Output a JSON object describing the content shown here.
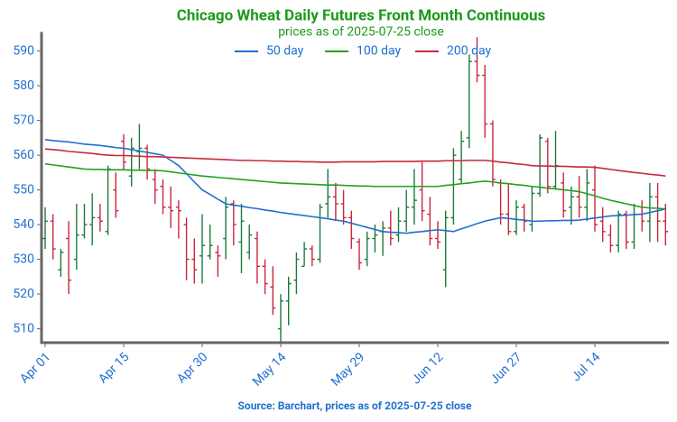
{
  "chart_data": {
    "type": "ohlc",
    "title": "Chicago Wheat Daily Futures Front Month Continuous",
    "subtitle": "prices as of 2025-07-25 close",
    "source": "Source: Barchart, prices as of 2025-07-25 close",
    "categories": [
      "Apr 01",
      null,
      null,
      null,
      null,
      null,
      null,
      null,
      null,
      null,
      "Apr 15",
      null,
      null,
      null,
      null,
      null,
      null,
      null,
      null,
      null,
      "Apr 30",
      null,
      null,
      null,
      null,
      null,
      null,
      null,
      null,
      null,
      "May 14",
      null,
      null,
      null,
      null,
      null,
      null,
      null,
      null,
      null,
      "May 29",
      null,
      null,
      null,
      null,
      null,
      null,
      null,
      null,
      null,
      "Jun 12",
      null,
      null,
      null,
      null,
      null,
      null,
      null,
      null,
      null,
      "Jun 27",
      null,
      null,
      null,
      null,
      null,
      null,
      null,
      null,
      null,
      "Jul 14",
      null,
      null,
      null,
      null,
      null,
      null,
      null,
      null,
      null
    ],
    "open": [
      536,
      541,
      527,
      536,
      530,
      537,
      540,
      542,
      538,
      550,
      564,
      554,
      561,
      562,
      553,
      551,
      545,
      545,
      540,
      530,
      531,
      531,
      532,
      536,
      546,
      535,
      532,
      536,
      528,
      522,
      510,
      518,
      524,
      528,
      533,
      530,
      546,
      548,
      546,
      542,
      535,
      530,
      536,
      538,
      539,
      537,
      541,
      545,
      550,
      543,
      536,
      527,
      542,
      553,
      565,
      587,
      583,
      569,
      552,
      543,
      538,
      545,
      540,
      549,
      564,
      551,
      552,
      545,
      548,
      545,
      550,
      541,
      537,
      534,
      543,
      535,
      543,
      541,
      548,
      541
    ],
    "high": [
      545,
      543,
      533,
      541,
      546,
      546,
      549,
      546,
      557,
      555,
      566,
      565,
      569,
      563,
      556,
      553,
      551,
      547,
      542,
      536,
      543,
      540,
      534,
      548,
      547,
      546,
      540,
      538,
      530,
      528,
      520,
      525,
      532,
      535,
      534,
      546,
      556,
      552,
      550,
      544,
      536,
      538,
      540,
      541,
      544,
      545,
      550,
      556,
      558,
      548,
      541,
      544,
      562,
      567,
      589,
      594,
      586,
      570,
      553,
      552,
      547,
      546,
      551,
      566,
      565,
      567,
      555,
      551,
      554,
      556,
      557,
      545,
      540,
      544,
      544,
      546,
      547,
      552,
      552,
      546
    ],
    "low": [
      533,
      530,
      525,
      520,
      527,
      536,
      534,
      538,
      537,
      542,
      556,
      551,
      556,
      553,
      546,
      543,
      539,
      536,
      524,
      523,
      523,
      530,
      525,
      530,
      534,
      526,
      530,
      523,
      520,
      514,
      506,
      511,
      520,
      528,
      528,
      529,
      542,
      541,
      540,
      533,
      527,
      528,
      532,
      531,
      534,
      535,
      538,
      540,
      541,
      534,
      533,
      522,
      540,
      552,
      562,
      581,
      565,
      551,
      540,
      537,
      537,
      538,
      538,
      548,
      549,
      550,
      542,
      540,
      542,
      541,
      538,
      535,
      532,
      532,
      533,
      533,
      538,
      535,
      535,
      534
    ],
    "close": [
      541,
      533,
      532,
      524,
      537,
      540,
      542,
      541,
      556,
      544,
      558,
      562,
      562,
      556,
      550,
      545,
      544,
      544,
      530,
      527,
      534,
      534,
      531,
      545,
      540,
      541,
      537,
      528,
      523,
      516,
      518,
      523,
      530,
      533,
      530,
      545,
      548,
      546,
      542,
      536,
      529,
      536,
      537,
      539,
      536,
      541,
      545,
      547,
      544,
      536,
      535,
      542,
      560,
      564,
      587,
      583,
      569,
      553,
      543,
      538,
      545,
      541,
      549,
      565,
      551,
      557,
      544,
      548,
      545,
      552,
      540,
      538,
      534,
      543,
      535,
      543,
      541,
      548,
      541,
      538
    ],
    "up_color": "#1e7a3c",
    "down_color": "#c8283c",
    "series": [
      {
        "name": "50 day",
        "color": "#1f6fd1",
        "values": [
          564.5,
          564.2,
          564,
          563.8,
          563.5,
          563.2,
          563,
          562.8,
          562.5,
          562.2,
          562,
          561.6,
          561.2,
          560.8,
          560.4,
          560,
          558.5,
          557,
          554.7,
          552.3,
          550,
          548.7,
          547.3,
          546,
          545.6,
          545.3,
          544.9,
          544.6,
          544.2,
          543.9,
          543.5,
          543.2,
          542.9,
          542.6,
          542.3,
          542,
          541.7,
          541.3,
          541,
          540.4,
          539.8,
          539.2,
          538.6,
          538,
          537.8,
          537.7,
          537.5,
          537.8,
          538,
          538.3,
          538.5,
          538.3,
          538,
          538.8,
          539.5,
          540.3,
          541,
          541.5,
          542,
          541.8,
          541.5,
          541.3,
          541,
          541,
          541.1,
          541.1,
          541.2,
          541.2,
          541.3,
          541.6,
          541.9,
          542.2,
          542.5,
          542.6,
          542.7,
          542.9,
          543,
          543.5,
          544,
          544.5
        ]
      },
      {
        "name": "100 day",
        "color": "#22a022",
        "values": [
          557.5,
          557.2,
          556.9,
          556.6,
          556.3,
          556,
          555.9,
          555.9,
          555.8,
          555.8,
          555.8,
          555.7,
          555.7,
          555.6,
          555.6,
          555.5,
          555.2,
          554.9,
          554.6,
          554.3,
          554,
          553.8,
          553.6,
          553.4,
          553.2,
          553,
          552.8,
          552.6,
          552.4,
          552.2,
          552,
          551.9,
          551.8,
          551.7,
          551.6,
          551.5,
          551.4,
          551.4,
          551.3,
          551.2,
          551.1,
          551.1,
          551,
          551,
          551,
          551,
          551,
          551,
          551,
          551,
          551,
          551.3,
          551.5,
          551.8,
          552,
          552.3,
          552.5,
          552.3,
          552,
          551.8,
          551.5,
          551.3,
          551,
          550.8,
          550.5,
          550.3,
          550,
          549.8,
          549.5,
          548.9,
          548.3,
          547.6,
          547,
          546.5,
          546,
          545.5,
          545,
          544.8,
          544.7,
          544.5
        ]
      },
      {
        "name": "200 day",
        "color": "#c8283c",
        "values": [
          561.8,
          561.6,
          561.4,
          561.1,
          560.9,
          560.7,
          560.5,
          560.2,
          560,
          559.9,
          559.9,
          559.8,
          559.7,
          559.6,
          559.6,
          559.5,
          559.4,
          559.3,
          559.2,
          559.1,
          559,
          558.9,
          558.8,
          558.7,
          558.6,
          558.5,
          558.5,
          558.4,
          558.4,
          558.3,
          558.3,
          558.2,
          558.2,
          558.1,
          558.1,
          558,
          558,
          558,
          558.1,
          558.1,
          558.1,
          558.1,
          558.1,
          558.2,
          558.2,
          558.2,
          558.2,
          558.2,
          558.3,
          558.3,
          558.3,
          558.4,
          558.4,
          558.4,
          558.5,
          558.5,
          558.5,
          558.3,
          558,
          557.8,
          557.5,
          557.3,
          557,
          556.9,
          556.9,
          556.8,
          556.8,
          556.7,
          556.6,
          556.6,
          556.5,
          556.2,
          555.9,
          555.6,
          555.3,
          555,
          554.8,
          554.5,
          554.3,
          554
        ]
      }
    ],
    "ylim": [
      506,
      595
    ],
    "yticks": [
      510,
      520,
      530,
      540,
      550,
      560,
      570,
      580,
      590
    ],
    "legend": "top"
  }
}
